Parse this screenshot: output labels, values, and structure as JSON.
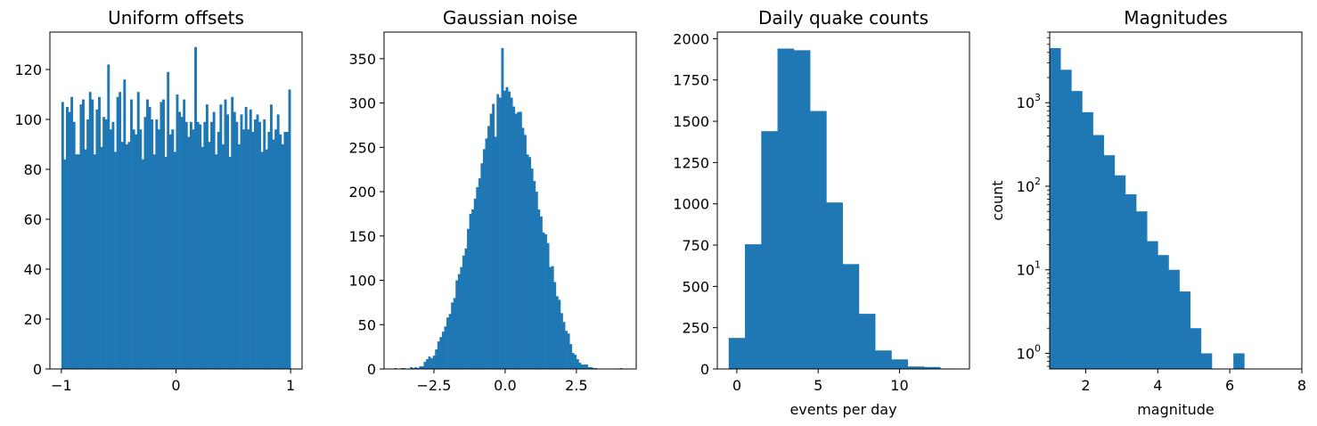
{
  "colors": {
    "bar": "#1f77b4"
  },
  "chart_data": [
    {
      "type": "bar",
      "title": "Uniform offsets",
      "xlabel": "",
      "ylabel": "",
      "xlim": [
        -1.1,
        1.1
      ],
      "ylim": [
        0,
        135
      ],
      "xticks": [
        -1,
        0,
        1
      ],
      "xtick_labels": [
        "−1",
        "0",
        "1"
      ],
      "yticks": [
        0,
        20,
        40,
        60,
        80,
        100,
        120
      ],
      "ytick_labels": [
        "0",
        "20",
        "40",
        "60",
        "80",
        "100",
        "120"
      ],
      "bin_start": -1.0,
      "bin_width": 0.02,
      "values": [
        107,
        84,
        105,
        103,
        109,
        99,
        86,
        86,
        106,
        108,
        88,
        100,
        111,
        108,
        86,
        104,
        109,
        89,
        101,
        100,
        122,
        96,
        99,
        87,
        109,
        111,
        91,
        116,
        90,
        91,
        108,
        96,
        94,
        111,
        96,
        84,
        101,
        108,
        105,
        100,
        86,
        100,
        96,
        107,
        108,
        85,
        119,
        94,
        96,
        87,
        110,
        103,
        101,
        108,
        99,
        93,
        99,
        96,
        129,
        99,
        98,
        89,
        99,
        106,
        91,
        99,
        103,
        86,
        95,
        106,
        90,
        108,
        102,
        85,
        109,
        103,
        99,
        90,
        102,
        96,
        105,
        96,
        104,
        95,
        100,
        102,
        99,
        87,
        100,
        88,
        95,
        106,
        92,
        96,
        102,
        94,
        90,
        95,
        95,
        112
      ]
    },
    {
      "type": "bar",
      "title": "Gaussian noise",
      "xlabel": "",
      "ylabel": "",
      "xlim": [
        -4.25,
        4.6
      ],
      "ylim": [
        0,
        380
      ],
      "xticks": [
        -2.5,
        0.0,
        2.5
      ],
      "xtick_labels": [
        "−2.5",
        "0.0",
        "2.5"
      ],
      "yticks": [
        0,
        50,
        100,
        150,
        200,
        250,
        300,
        350
      ],
      "ytick_labels": [
        "0",
        "50",
        "100",
        "150",
        "200",
        "250",
        "300",
        "350"
      ],
      "bin_start": -3.9,
      "bin_width": 0.08,
      "values": [
        1,
        0,
        0,
        1,
        1,
        0,
        0,
        2,
        1,
        2,
        1,
        3,
        3,
        8,
        11,
        14,
        12,
        15,
        22,
        31,
        36,
        42,
        48,
        58,
        62,
        75,
        80,
        100,
        107,
        115,
        128,
        136,
        158,
        175,
        180,
        192,
        205,
        215,
        232,
        248,
        260,
        274,
        288,
        299,
        262,
        310,
        306,
        362,
        314,
        318,
        313,
        306,
        296,
        288,
        290,
        290,
        272,
        264,
        242,
        239,
        226,
        212,
        200,
        180,
        172,
        154,
        152,
        142,
        115,
        116,
        98,
        82,
        78,
        63,
        53,
        43,
        40,
        28,
        18,
        16,
        11,
        7,
        5,
        5,
        5,
        2,
        2,
        1,
        1,
        0,
        0,
        0,
        0,
        0,
        0,
        0,
        0,
        0,
        0,
        1
      ]
    },
    {
      "type": "bar",
      "title": "Daily quake counts",
      "xlabel": "events per day",
      "ylabel": "",
      "xlim": [
        -1.2,
        14.3
      ],
      "ylim": [
        0,
        2040
      ],
      "xticks": [
        0,
        5,
        10
      ],
      "xtick_labels": [
        "0",
        "5",
        "10"
      ],
      "yticks": [
        0,
        250,
        500,
        750,
        1000,
        1250,
        1500,
        1750,
        2000
      ],
      "ytick_labels": [
        "0",
        "250",
        "500",
        "750",
        "1000",
        "1250",
        "1500",
        "1750",
        "2000"
      ],
      "bin_start": -0.5,
      "bin_width": 1.0,
      "values": [
        188,
        755,
        1440,
        1940,
        1930,
        1562,
        1008,
        635,
        334,
        112,
        58,
        15,
        12,
        3
      ]
    },
    {
      "type": "bar",
      "title": "Magnitudes",
      "xlabel": "magnitude",
      "ylabel": "count",
      "xscale": "linear",
      "yscale": "log",
      "xlim": [
        1.0,
        8.0
      ],
      "ylim": [
        0.65,
        7000
      ],
      "xticks": [
        2,
        4,
        6,
        8
      ],
      "xtick_labels": [
        "2",
        "4",
        "6",
        "8"
      ],
      "yticks": [
        1,
        10,
        100,
        1000
      ],
      "ytick_base": "10",
      "ytick_exponents": [
        "0",
        "1",
        "2",
        "3"
      ],
      "bin_start": 1.0,
      "bin_width": 0.3,
      "values": [
        4500,
        2480,
        1380,
        770,
        410,
        235,
        135,
        80,
        50,
        22,
        15,
        10,
        5.5,
        2,
        1,
        0,
        0,
        1
      ]
    }
  ]
}
